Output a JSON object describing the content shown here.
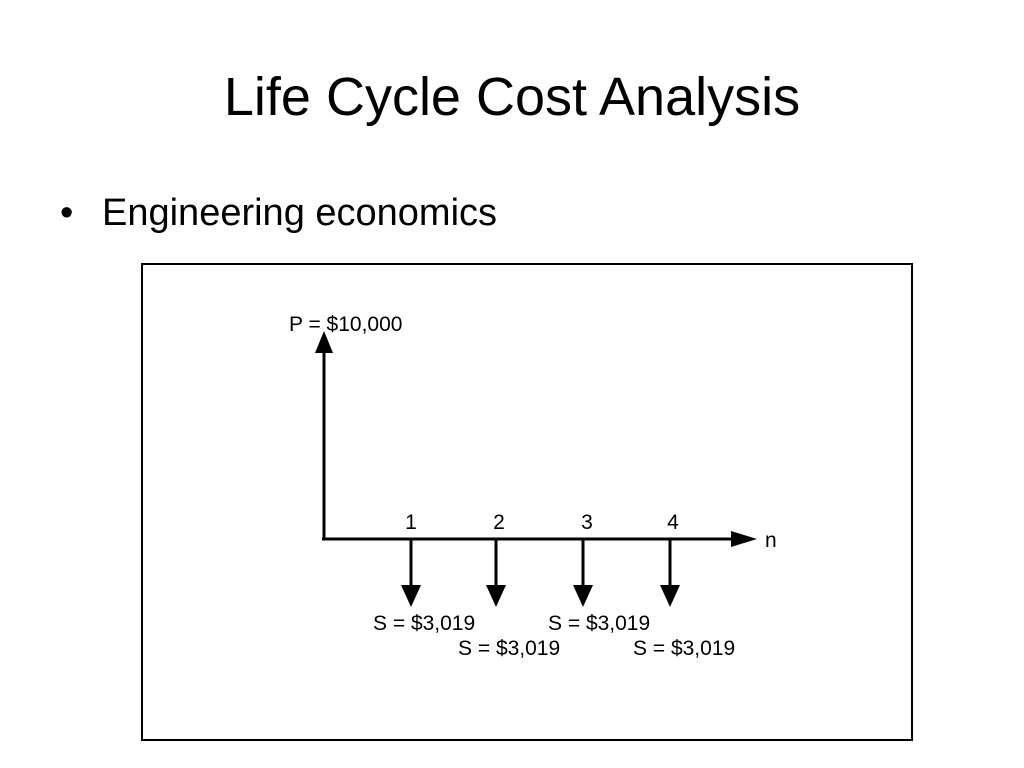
{
  "slide": {
    "title": "Life Cycle Cost Analysis",
    "bullets": [
      {
        "marker": "•",
        "text": "Engineering economics"
      }
    ]
  },
  "diagram": {
    "present_label": "P = $10,000",
    "axis_label": "n",
    "periods": [
      "1",
      "2",
      "3",
      "4"
    ],
    "payments": [
      "S = $3,019",
      "S = $3,019",
      "S = $3,019",
      "S = $3,019"
    ],
    "line_color": "#000000"
  }
}
